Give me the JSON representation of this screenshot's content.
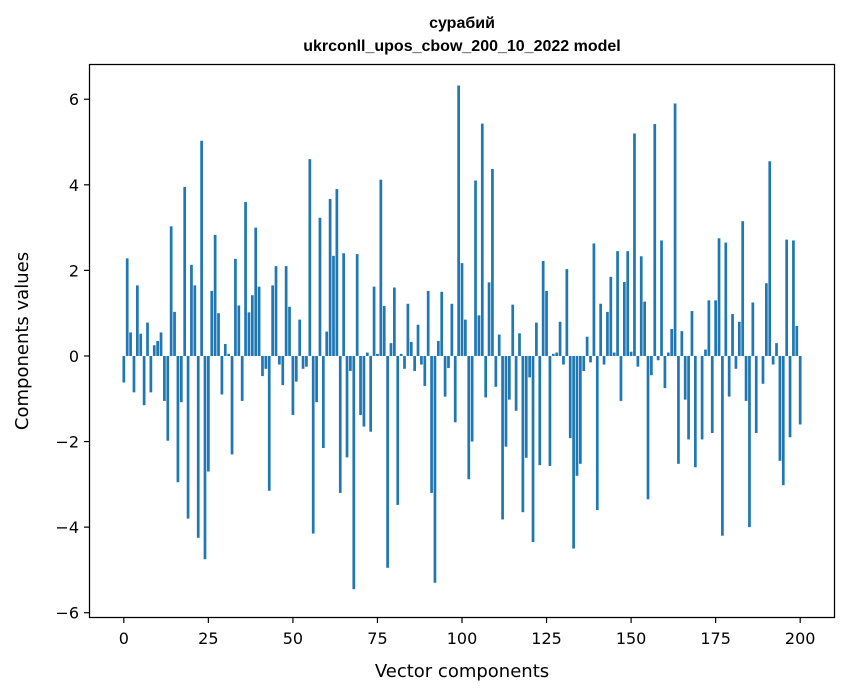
{
  "chart_data": {
    "type": "bar",
    "title": "сурабий",
    "subtitle": "ukrconll_upos_cbow_200_10_2022 model",
    "xlabel": "Vector components",
    "ylabel": "Components values",
    "xlim": [
      -10,
      210
    ],
    "ylim": [
      -6.1,
      6.8
    ],
    "xticks": [
      0,
      25,
      50,
      75,
      100,
      125,
      150,
      175,
      200
    ],
    "yticks": [
      -6,
      -4,
      -2,
      0,
      2,
      4,
      6
    ],
    "ytick_labels": [
      "−6",
      "−4",
      "−2",
      "0",
      "2",
      "4",
      "6"
    ],
    "bar_color": "#1f77b4",
    "grid": false,
    "values": [
      -0.62,
      2.28,
      0.55,
      -0.85,
      1.65,
      0.52,
      -1.15,
      0.78,
      -0.85,
      0.25,
      0.35,
      0.55,
      -1.05,
      -1.98,
      3.03,
      1.03,
      -2.95,
      -1.08,
      3.95,
      -3.8,
      2.13,
      1.65,
      -4.25,
      5.03,
      -4.75,
      -2.7,
      1.52,
      2.83,
      1.0,
      -0.9,
      0.28,
      0.05,
      -2.3,
      2.27,
      1.18,
      -1.05,
      3.6,
      1.02,
      1.42,
      3.0,
      1.62,
      -0.47,
      -0.3,
      -3.15,
      1.65,
      2.1,
      -0.2,
      -0.68,
      2.1,
      1.15,
      -1.38,
      -0.6,
      0.85,
      -0.3,
      -0.25,
      4.6,
      -4.15,
      -1.08,
      3.23,
      -2.15,
      0.57,
      3.67,
      2.34,
      3.9,
      -3.2,
      2.4,
      -2.37,
      -0.35,
      -5.45,
      2.38,
      -1.38,
      -1.65,
      0.08,
      -1.77,
      1.62,
      0.05,
      4.12,
      1.17,
      -4.95,
      0.3,
      1.6,
      -3.48,
      0.05,
      -0.3,
      1.22,
      0.33,
      -0.35,
      0.73,
      -0.2,
      -0.7,
      1.52,
      -3.2,
      -5.3,
      0.35,
      1.5,
      -0.95,
      -0.28,
      1.22,
      -1.55,
      6.32,
      2.17,
      0.85,
      -2.88,
      -2.0,
      4.1,
      0.95,
      5.43,
      -0.97,
      1.72,
      4.37,
      -0.72,
      0.5,
      -3.82,
      -2.12,
      -1.02,
      1.2,
      -1.28,
      0.53,
      -3.65,
      -2.38,
      -0.5,
      -4.35,
      0.78,
      -2.55,
      2.22,
      1.52,
      -2.57,
      0.05,
      0.08,
      0.8,
      -0.2,
      2.03,
      -1.92,
      -4.5,
      -2.8,
      -2.52,
      -0.35,
      0.45,
      -0.15,
      2.63,
      -3.6,
      1.22,
      -0.2,
      1.03,
      1.85,
      0.08,
      2.45,
      -1.05,
      1.73,
      2.45,
      0.1,
      5.2,
      -0.25,
      2.33,
      1.27,
      -3.35,
      -0.45,
      5.42,
      -0.1,
      2.7,
      -0.75,
      0.08,
      0.63,
      5.9,
      -2.52,
      0.58,
      -1.02,
      -1.95,
      1.05,
      -2.6,
      0.0,
      -1.95,
      0.15,
      1.3,
      -1.8,
      1.3,
      2.75,
      -4.2,
      2.65,
      -0.95,
      0.98,
      -0.3,
      0.8,
      3.15,
      -1.05,
      -4.0,
      1.25,
      -1.8,
      0.0,
      -0.65,
      1.7,
      4.55,
      -0.2,
      0.3,
      -2.45,
      -3.02,
      2.72,
      -1.9,
      2.7,
      0.7,
      -1.6
    ]
  }
}
